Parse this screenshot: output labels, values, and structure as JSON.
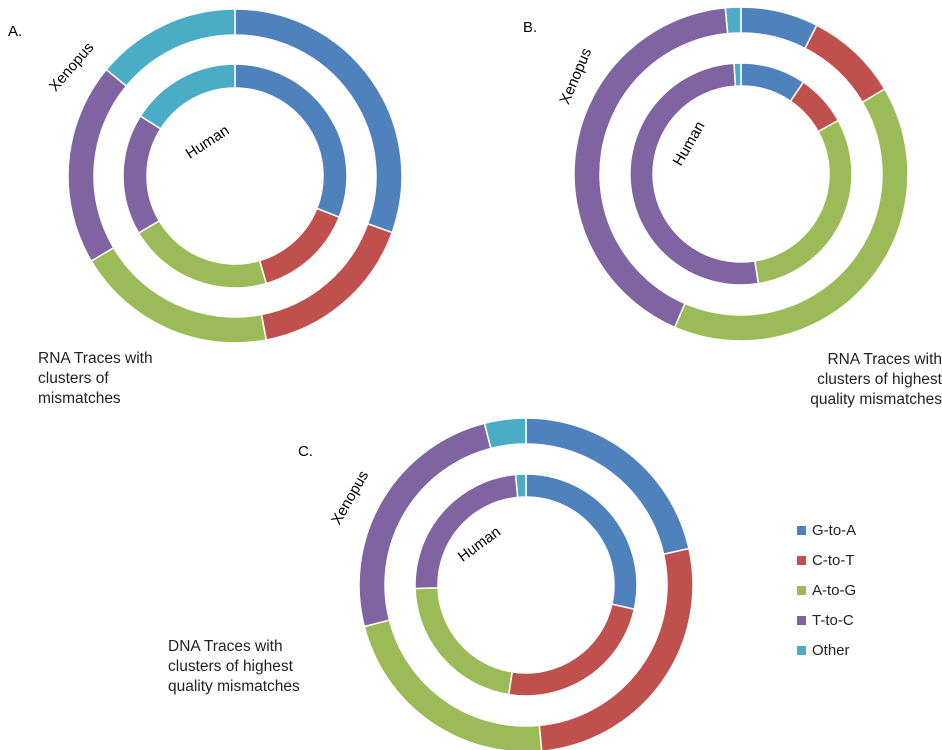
{
  "legend": {
    "items": [
      {
        "label": "G-to-A",
        "color": "#4f81bd"
      },
      {
        "label": "C-to-T",
        "color": "#c0504d"
      },
      {
        "label": "A-to-G",
        "color": "#9bbb59"
      },
      {
        "label": "T-to-C",
        "color": "#8064a2"
      },
      {
        "label": "Other",
        "color": "#4bacc6"
      }
    ]
  },
  "chart_data": [
    {
      "type": "doughnut",
      "panel": "A.",
      "caption_lines": [
        "RNA Traces with",
        "clusters of",
        "mismatches"
      ],
      "ring_labels": {
        "outer": "Xenopus",
        "inner": "Human"
      },
      "categories": [
        "G-to-A",
        "C-to-T",
        "A-to-G",
        "T-to-C",
        "Other"
      ],
      "series": [
        {
          "name": "Xenopus",
          "values": [
            30.5,
            16.5,
            19.5,
            19.5,
            14
          ]
        },
        {
          "name": "Human",
          "values": [
            31,
            14.5,
            21,
            17.5,
            16
          ]
        }
      ]
    },
    {
      "type": "doughnut",
      "panel": "B.",
      "caption_lines": [
        "RNA Traces with",
        "clusters of highest",
        "quality mismatches"
      ],
      "ring_labels": {
        "outer": "Xenopus",
        "inner": "Human"
      },
      "categories": [
        "G-to-A",
        "C-to-T",
        "A-to-G",
        "T-to-C",
        "Other"
      ],
      "series": [
        {
          "name": "Xenopus",
          "values": [
            7.5,
            9,
            40,
            42,
            1.5
          ]
        },
        {
          "name": "Human",
          "values": [
            9.5,
            7.5,
            30.5,
            51.5,
            1
          ]
        }
      ]
    },
    {
      "type": "doughnut",
      "panel": "C.",
      "caption_lines": [
        "DNA Traces with",
        "clusters of highest",
        "quality mismatches"
      ],
      "ring_labels": {
        "outer": "Xenopus",
        "inner": "Human"
      },
      "categories": [
        "G-to-A",
        "C-to-T",
        "A-to-G",
        "T-to-C",
        "Other"
      ],
      "series": [
        {
          "name": "Xenopus",
          "values": [
            21.5,
            27,
            22.5,
            25,
            4
          ]
        },
        {
          "name": "Human",
          "values": [
            28.5,
            24,
            22,
            24,
            1.5
          ]
        }
      ]
    }
  ]
}
